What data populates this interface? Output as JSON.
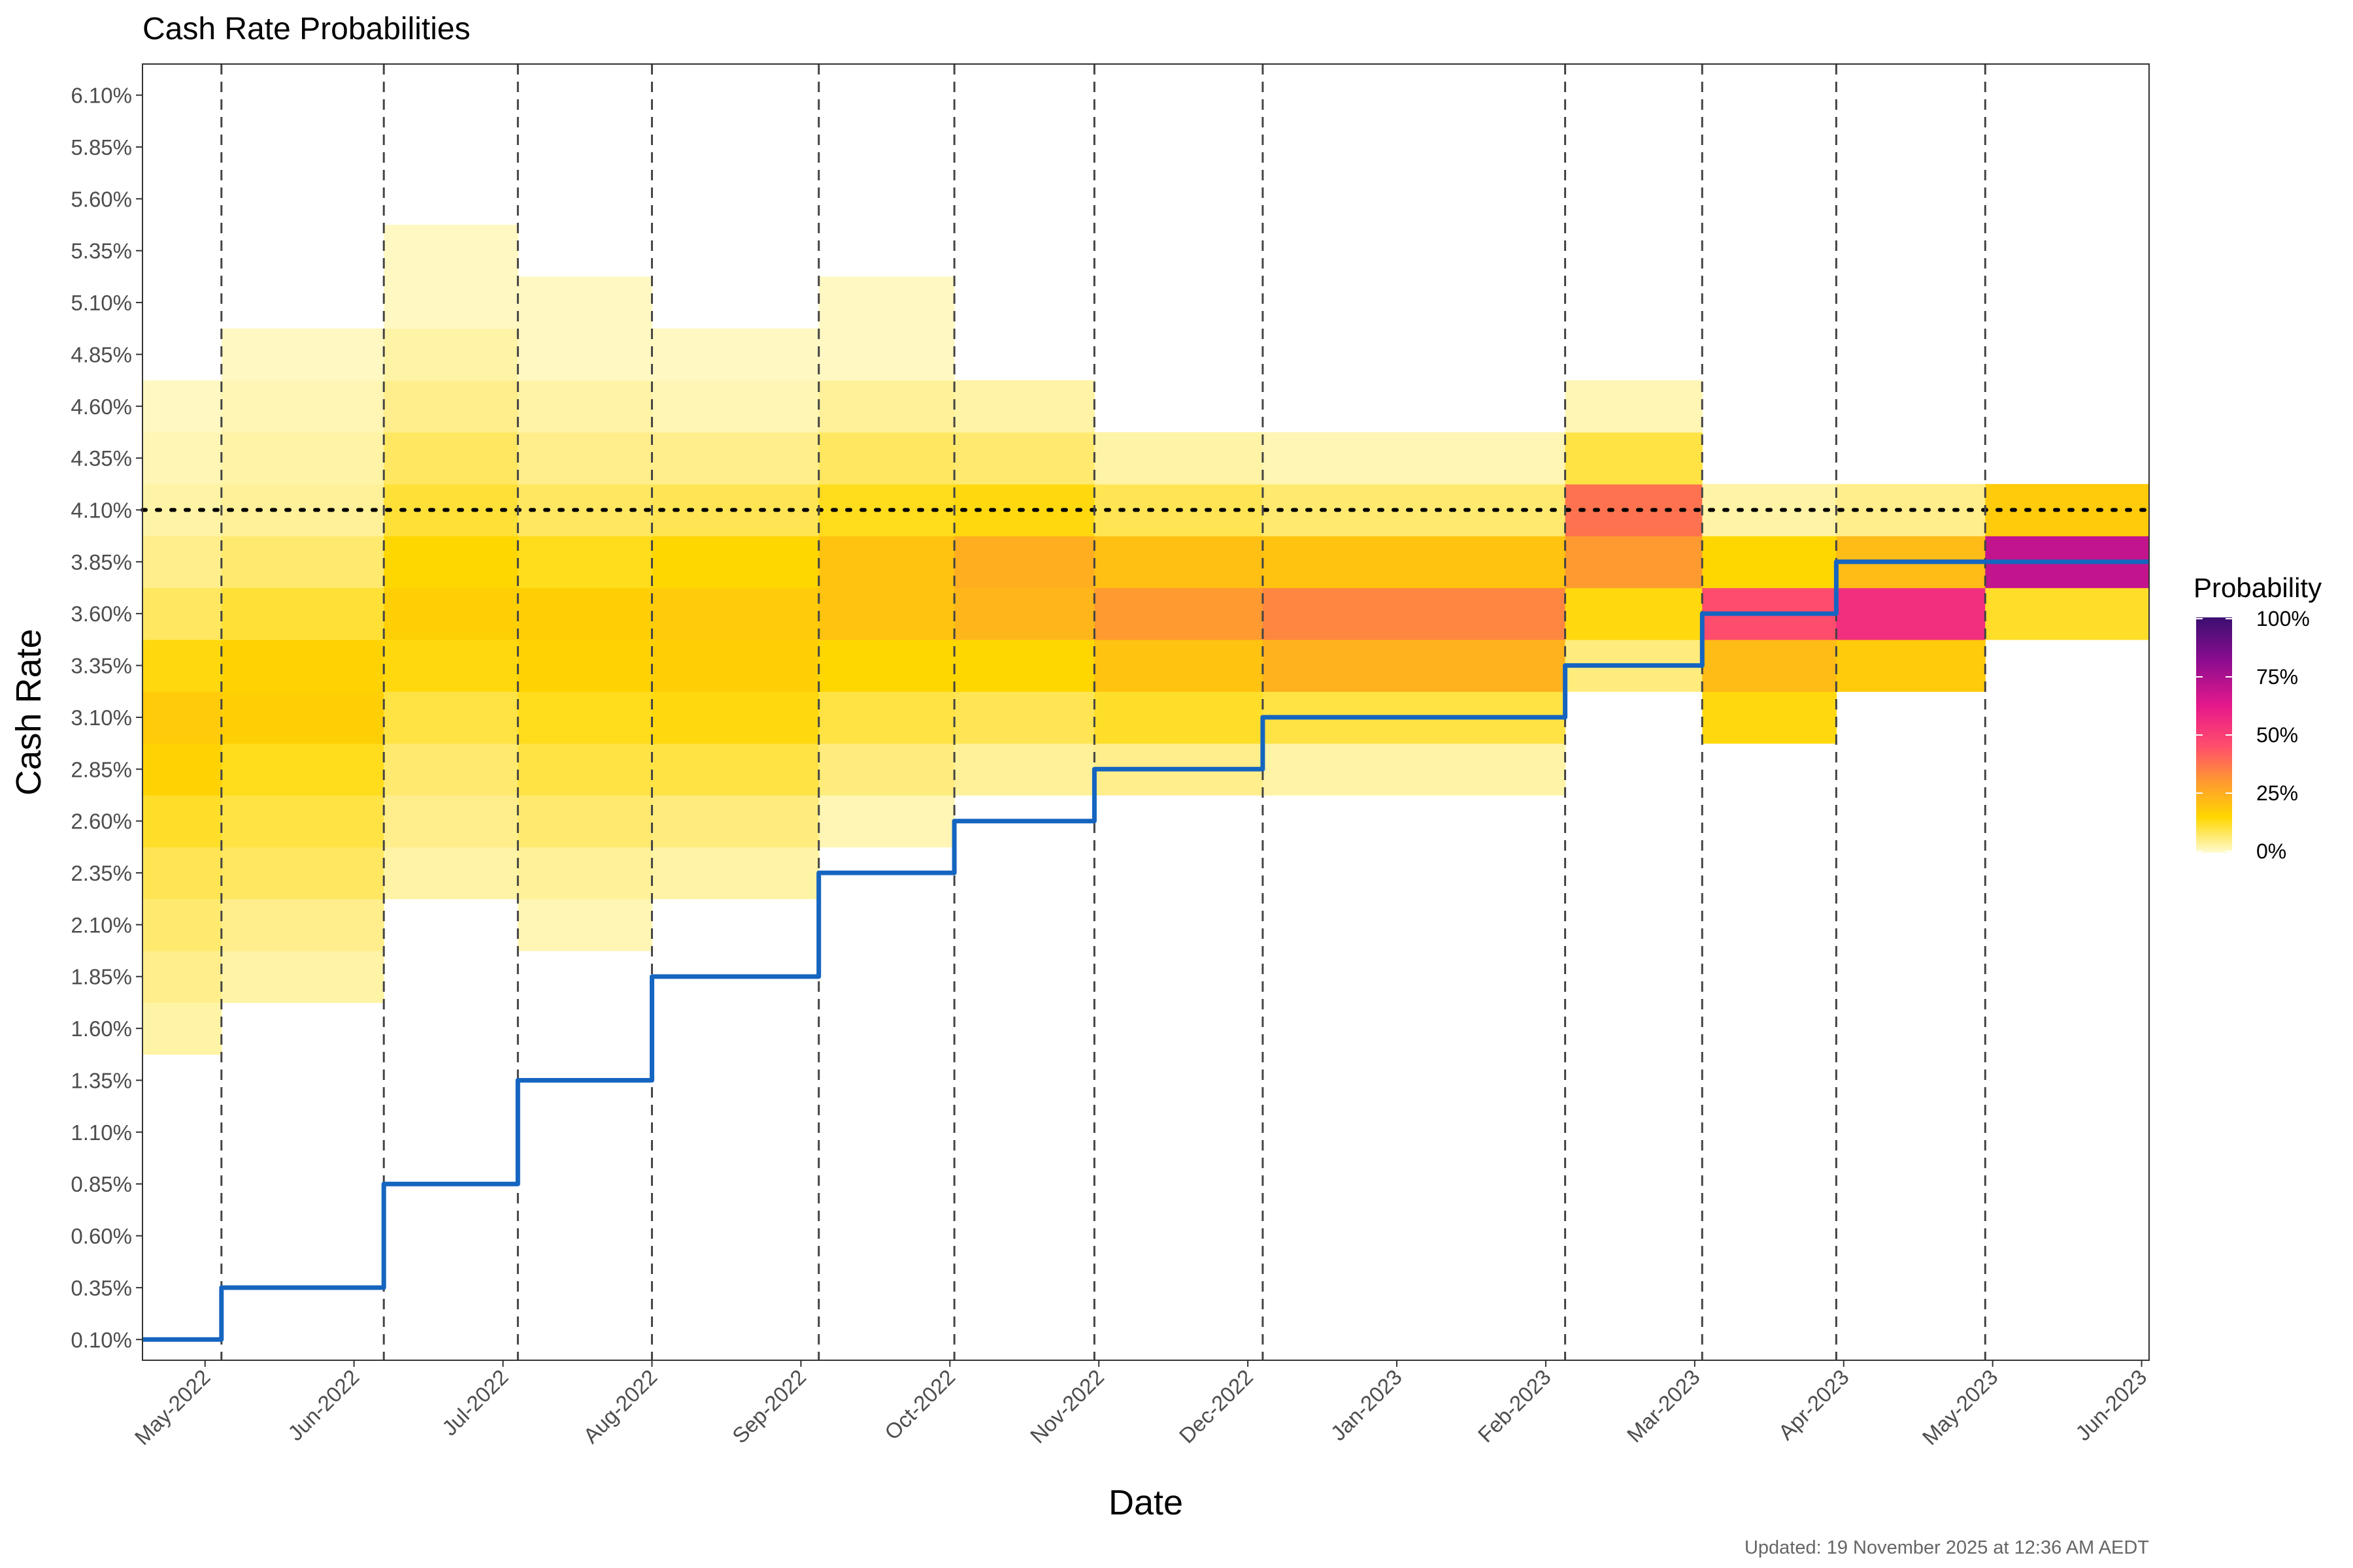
{
  "chart_data": {
    "type": "heatmap",
    "title": "Cash Rate Probabilities",
    "xlabel": "Date",
    "ylabel": "Cash Rate",
    "caption": "Updated: 19 November 2025 at 12:36 AM AEDT",
    "x_ticks": [
      "May-2022",
      "Jun-2022",
      "Jul-2022",
      "Aug-2022",
      "Sep-2022",
      "Oct-2022",
      "Nov-2022",
      "Dec-2022",
      "Jan-2023",
      "Feb-2023",
      "Mar-2023",
      "Apr-2023",
      "May-2023",
      "Jun-2023"
    ],
    "xlim_months": [
      -0.42,
      13.05
    ],
    "y_ticks": [
      "0.10%",
      "0.35%",
      "0.60%",
      "0.85%",
      "1.10%",
      "1.35%",
      "1.60%",
      "1.85%",
      "2.10%",
      "2.35%",
      "2.60%",
      "2.85%",
      "3.10%",
      "3.35%",
      "3.60%",
      "3.85%",
      "4.10%",
      "4.35%",
      "4.60%",
      "4.85%",
      "5.10%",
      "5.35%",
      "5.60%",
      "5.85%",
      "6.10%"
    ],
    "ylim": [
      0.0,
      6.25
    ],
    "reference_level": 4.1,
    "legend": {
      "title": "Probability",
      "labels": [
        "100%",
        "75%",
        "50%",
        "25%",
        "0%"
      ],
      "colors": [
        "#fffad0",
        "#ffd700",
        "#ff9a30",
        "#ff4f6b",
        "#e8198b",
        "#8a0c8f",
        "#3b0f70"
      ]
    },
    "meeting_months": [
      0.11,
      1.2,
      2.1,
      3.0,
      4.12,
      5.03,
      5.97,
      7.1,
      9.13,
      10.05,
      10.95,
      11.95
    ],
    "cash_rate_path": {
      "x": [
        -0.42,
        0.11,
        0.11,
        1.2,
        1.2,
        2.1,
        2.1,
        3.0,
        3.0,
        4.12,
        4.12,
        5.03,
        5.03,
        5.97,
        5.97,
        7.1,
        7.1,
        9.13,
        9.13,
        10.05,
        10.05,
        10.95,
        10.95,
        13.05
      ],
      "y": [
        0.1,
        0.1,
        0.35,
        0.35,
        0.85,
        0.85,
        1.35,
        1.35,
        1.85,
        1.85,
        2.35,
        2.35,
        2.6,
        2.6,
        2.85,
        2.85,
        3.1,
        3.1,
        3.35,
        3.35,
        3.6,
        3.6,
        3.85,
        3.85
      ]
    },
    "probability_segments": [
      {
        "x0": -0.42,
        "x1": 0.11,
        "rates": [
          1.6,
          1.85,
          2.1,
          2.35,
          2.6,
          2.85,
          3.1,
          3.35,
          3.6,
          3.85,
          4.1,
          4.35,
          4.6
        ],
        "probs": [
          0.03,
          0.05,
          0.07,
          0.09,
          0.12,
          0.16,
          0.18,
          0.14,
          0.08,
          0.05,
          0.03,
          0.02,
          0.01
        ]
      },
      {
        "x0": 0.11,
        "x1": 1.2,
        "rates": [
          1.85,
          2.1,
          2.35,
          2.6,
          2.85,
          3.1,
          3.35,
          3.6,
          3.85,
          4.1,
          4.35,
          4.6,
          4.85
        ],
        "probs": [
          0.03,
          0.05,
          0.08,
          0.1,
          0.13,
          0.17,
          0.16,
          0.11,
          0.07,
          0.04,
          0.03,
          0.02,
          0.01
        ]
      },
      {
        "x0": 1.2,
        "x1": 2.1,
        "rates": [
          2.35,
          2.6,
          2.85,
          3.1,
          3.35,
          3.6,
          3.85,
          4.1,
          4.35,
          4.6,
          4.85,
          5.1,
          5.35
        ],
        "probs": [
          0.03,
          0.05,
          0.07,
          0.1,
          0.14,
          0.17,
          0.15,
          0.11,
          0.08,
          0.05,
          0.03,
          0.01,
          0.01
        ]
      },
      {
        "x0": 2.1,
        "x1": 3.0,
        "rates": [
          2.1,
          2.35,
          2.6,
          2.85,
          3.1,
          3.35,
          3.6,
          3.85,
          4.1,
          4.35,
          4.6,
          4.85,
          5.1
        ],
        "probs": [
          0.02,
          0.04,
          0.07,
          0.1,
          0.13,
          0.16,
          0.17,
          0.13,
          0.08,
          0.05,
          0.03,
          0.01,
          0.01
        ]
      },
      {
        "x0": 3.0,
        "x1": 4.12,
        "rates": [
          2.35,
          2.6,
          2.85,
          3.1,
          3.35,
          3.6,
          3.85,
          4.1,
          4.35,
          4.6,
          4.85
        ],
        "probs": [
          0.03,
          0.06,
          0.1,
          0.14,
          0.17,
          0.18,
          0.15,
          0.09,
          0.05,
          0.02,
          0.01
        ]
      },
      {
        "x0": 4.12,
        "x1": 5.03,
        "rates": [
          2.6,
          2.85,
          3.1,
          3.35,
          3.6,
          3.85,
          4.1,
          4.35,
          4.6,
          4.85,
          5.1
        ],
        "probs": [
          0.02,
          0.06,
          0.1,
          0.15,
          0.2,
          0.2,
          0.13,
          0.08,
          0.04,
          0.01,
          0.01
        ]
      },
      {
        "x0": 5.03,
        "x1": 5.97,
        "rates": [
          2.85,
          3.1,
          3.35,
          3.6,
          3.85,
          4.1,
          4.35,
          4.6
        ],
        "probs": [
          0.04,
          0.09,
          0.15,
          0.23,
          0.25,
          0.14,
          0.07,
          0.03
        ]
      },
      {
        "x0": 5.97,
        "x1": 7.1,
        "rates": [
          2.85,
          3.1,
          3.35,
          3.6,
          3.85,
          4.1,
          4.35
        ],
        "probs": [
          0.05,
          0.12,
          0.2,
          0.3,
          0.21,
          0.09,
          0.03
        ]
      },
      {
        "x0": 7.1,
        "x1": 9.13,
        "rates": [
          2.85,
          3.1,
          3.35,
          3.6,
          3.85,
          4.1,
          4.35
        ],
        "probs": [
          0.03,
          0.1,
          0.24,
          0.34,
          0.2,
          0.07,
          0.02
        ]
      },
      {
        "x0": 9.13,
        "x1": 10.05,
        "rates": [
          3.35,
          3.6,
          3.85,
          4.1,
          4.35,
          4.6
        ],
        "probs": [
          0.06,
          0.14,
          0.3,
          0.38,
          0.1,
          0.02
        ]
      },
      {
        "x0": 10.05,
        "x1": 10.95,
        "rates": [
          3.1,
          3.35,
          3.6,
          3.85,
          4.1
        ],
        "probs": [
          0.14,
          0.22,
          0.46,
          0.15,
          0.03
        ]
      },
      {
        "x0": 10.95,
        "x1": 11.95,
        "rates": [
          3.35,
          3.6,
          3.85,
          4.1
        ],
        "probs": [
          0.18,
          0.55,
          0.22,
          0.05
        ]
      },
      {
        "x0": 11.95,
        "x1": 13.05,
        "rates": [
          3.6,
          3.85,
          4.1
        ],
        "probs": [
          0.12,
          0.7,
          0.18
        ]
      }
    ]
  }
}
